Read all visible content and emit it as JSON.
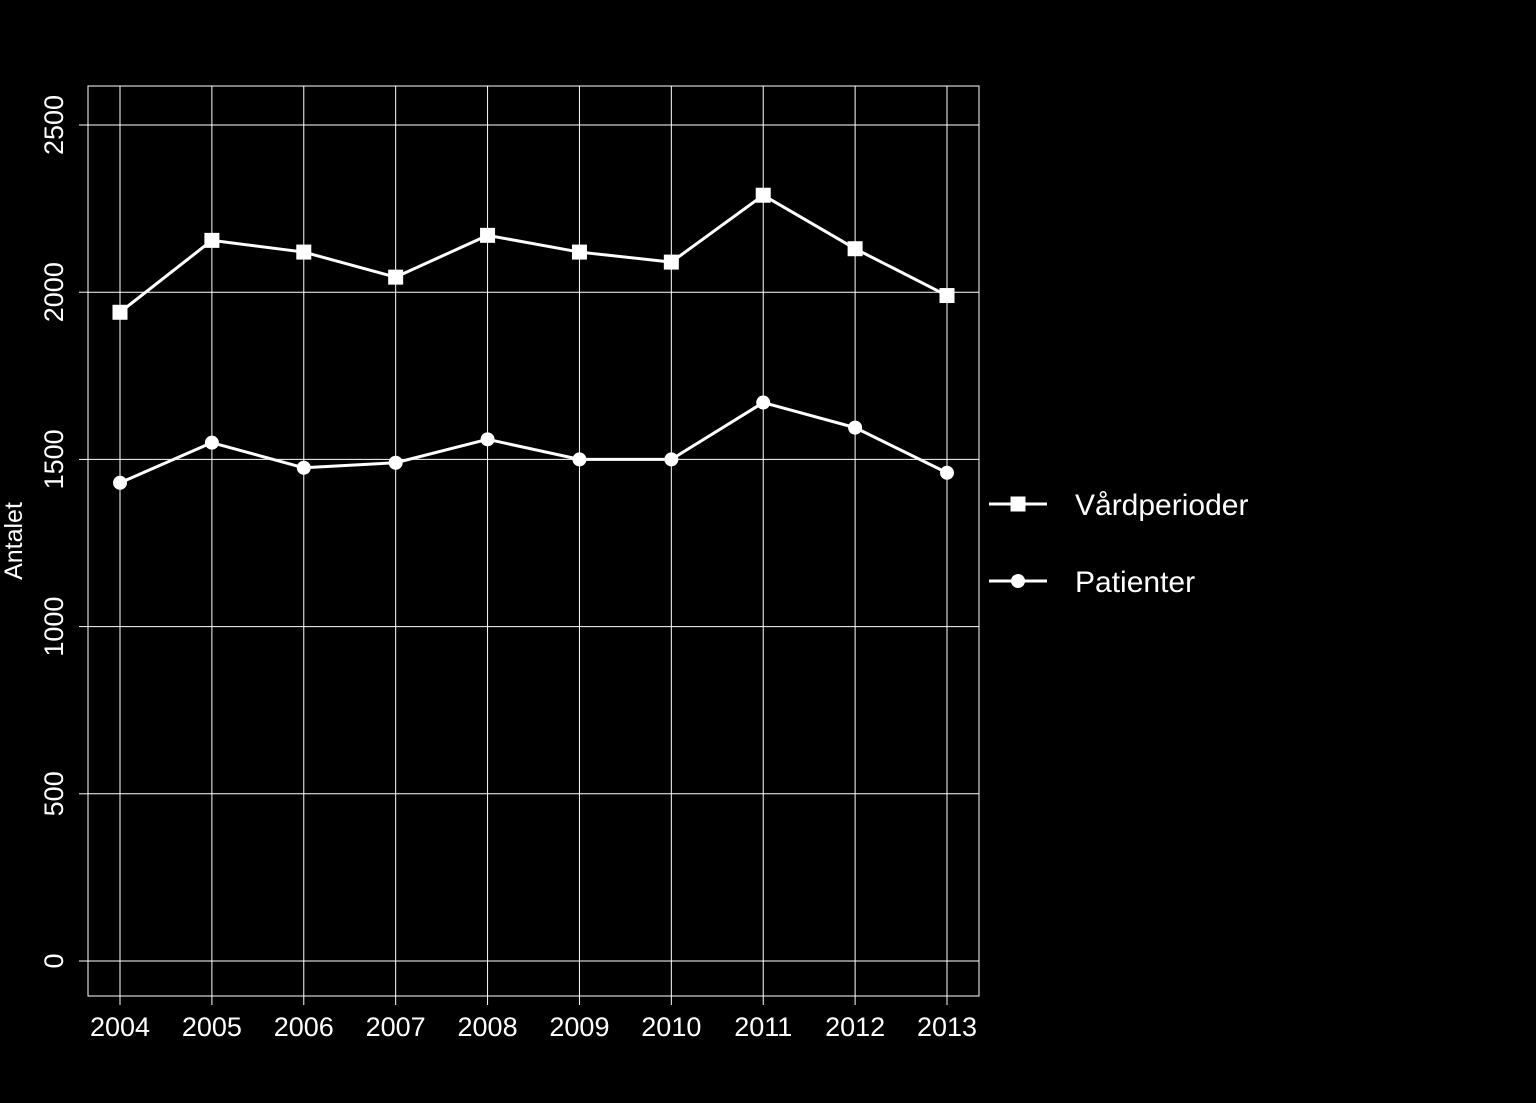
{
  "colors": {
    "background": "#000000",
    "foreground": "#ffffff",
    "grid": "#ffffff"
  },
  "chart_data": {
    "type": "line",
    "title": "",
    "xlabel": "",
    "ylabel": "Antalet",
    "x": [
      "2004",
      "2005",
      "2006",
      "2007",
      "2008",
      "2009",
      "2010",
      "2011",
      "2012",
      "2013"
    ],
    "ylim": [
      -100,
      2610
    ],
    "yticks": [
      0,
      500,
      1000,
      1500,
      2000,
      2500
    ],
    "grid": true,
    "legend_position": "right",
    "series": [
      {
        "name": "Vårdperioder",
        "marker": "square",
        "values": [
          1940,
          2155,
          2120,
          2045,
          2170,
          2120,
          2090,
          2290,
          2130,
          1990
        ]
      },
      {
        "name": "Patienter",
        "marker": "circle",
        "values": [
          1430,
          1550,
          1475,
          1490,
          1560,
          1500,
          1500,
          1670,
          1595,
          1460
        ]
      }
    ]
  }
}
